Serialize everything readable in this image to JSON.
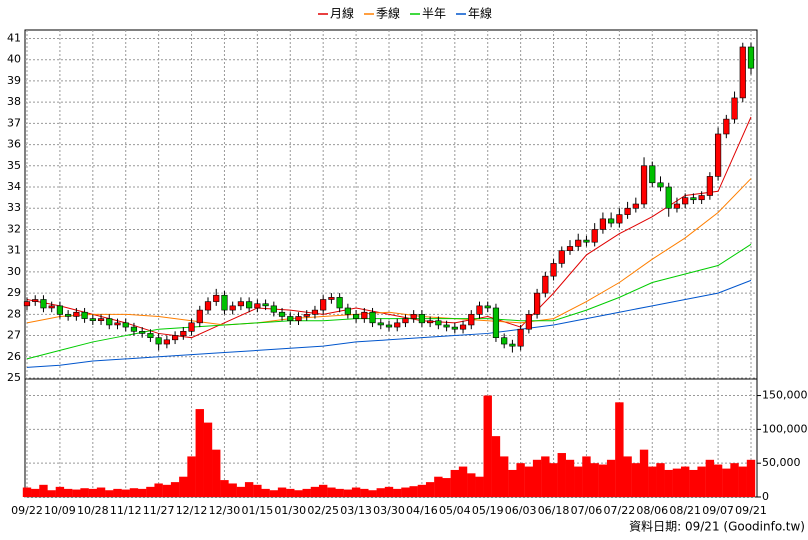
{
  "chart_data": {
    "type": "candlestick",
    "source": "資料日期: 09/21 (Goodinfo.tw)",
    "up_color": "#ff0000",
    "down_color": "#00c000",
    "grid": true,
    "categories": [
      "09/22",
      null,
      null,
      null,
      "10/09",
      null,
      null,
      null,
      "10/28",
      null,
      null,
      null,
      "11/12",
      null,
      null,
      null,
      "11/27",
      null,
      null,
      null,
      "12/12",
      null,
      null,
      null,
      "12/30",
      null,
      null,
      null,
      "01/15",
      null,
      null,
      null,
      "01/30",
      null,
      null,
      null,
      "02/25",
      null,
      null,
      null,
      "03/13",
      null,
      null,
      null,
      "03/30",
      null,
      null,
      null,
      "04/16",
      null,
      null,
      null,
      "05/04",
      null,
      null,
      null,
      "05/19",
      null,
      null,
      null,
      "06/03",
      null,
      null,
      null,
      "06/18",
      null,
      null,
      null,
      "07/06",
      null,
      null,
      null,
      "07/22",
      null,
      null,
      null,
      "08/06",
      null,
      null,
      null,
      "08/21",
      null,
      null,
      null,
      "09/07",
      null,
      null,
      null,
      "09/21"
    ],
    "ylim": [
      25,
      41.4
    ],
    "yticks": [
      25,
      26,
      27,
      28,
      29,
      30,
      31,
      32,
      33,
      34,
      35,
      36,
      37,
      38,
      39,
      40,
      41
    ],
    "open": [
      28.4,
      28.6,
      28.7,
      28.3,
      28.4,
      28.0,
      27.9,
      28.1,
      27.8,
      27.7,
      27.8,
      27.5,
      27.6,
      27.4,
      27.2,
      27.1,
      26.9,
      26.6,
      26.8,
      27.0,
      27.2,
      27.6,
      28.2,
      28.6,
      28.9,
      28.2,
      28.4,
      28.6,
      28.3,
      28.5,
      28.4,
      28.1,
      27.9,
      27.7,
      27.9,
      28.0,
      28.2,
      28.7,
      28.8,
      28.3,
      28.0,
      27.8,
      28.1,
      27.6,
      27.5,
      27.4,
      27.6,
      27.8,
      28.0,
      27.6,
      27.7,
      27.5,
      27.4,
      27.3,
      27.5,
      28.0,
      28.4,
      28.3,
      26.9,
      26.6,
      26.5,
      27.3,
      28.0,
      29.0,
      29.8,
      30.4,
      31.0,
      31.2,
      31.5,
      31.4,
      32.0,
      32.5,
      32.3,
      32.7,
      33.0,
      33.2,
      35.0,
      34.2,
      34.0,
      33.0,
      33.2,
      33.5,
      33.4,
      33.6,
      34.5,
      36.5,
      37.2,
      38.2,
      40.6
    ],
    "high": [
      28.8,
      28.9,
      28.9,
      28.6,
      28.6,
      28.2,
      28.3,
      28.3,
      28.0,
      28.0,
      28.0,
      27.8,
      27.8,
      27.6,
      27.4,
      27.3,
      27.1,
      27.0,
      27.2,
      27.4,
      27.8,
      28.4,
      28.8,
      29.2,
      29.1,
      28.6,
      28.8,
      28.8,
      28.7,
      28.7,
      28.6,
      28.3,
      28.1,
      28.1,
      28.2,
      28.4,
      28.9,
      29.0,
      29.0,
      28.5,
      28.2,
      28.3,
      28.3,
      27.8,
      27.7,
      27.8,
      28.0,
      28.2,
      28.2,
      27.9,
      27.9,
      27.7,
      27.6,
      27.7,
      28.2,
      28.6,
      28.6,
      28.5,
      27.1,
      26.8,
      27.5,
      28.2,
      29.2,
      30.0,
      30.6,
      31.2,
      31.5,
      31.8,
      31.7,
      32.3,
      32.8,
      32.8,
      33.0,
      33.3,
      33.5,
      35.4,
      35.2,
      34.5,
      34.2,
      33.5,
      33.7,
      33.7,
      33.8,
      34.7,
      36.8,
      37.4,
      38.5,
      40.8,
      40.8
    ],
    "low": [
      28.2,
      28.4,
      28.1,
      28.1,
      27.8,
      27.7,
      27.7,
      27.6,
      27.5,
      27.5,
      27.3,
      27.3,
      27.2,
      27.0,
      26.9,
      26.7,
      26.3,
      26.4,
      26.6,
      26.8,
      27.0,
      27.4,
      28.0,
      28.4,
      28.0,
      28.0,
      28.2,
      28.1,
      28.1,
      28.2,
      27.9,
      27.7,
      27.5,
      27.5,
      27.7,
      27.8,
      28.0,
      28.5,
      28.1,
      27.8,
      27.6,
      27.6,
      27.4,
      27.3,
      27.2,
      27.2,
      27.4,
      27.6,
      27.4,
      27.4,
      27.3,
      27.2,
      27.1,
      27.1,
      27.3,
      27.8,
      28.1,
      26.7,
      26.4,
      26.2,
      26.3,
      27.1,
      27.8,
      28.8,
      29.6,
      30.2,
      30.8,
      31.0,
      31.2,
      31.2,
      31.8,
      32.1,
      32.1,
      32.5,
      32.8,
      33.0,
      34.0,
      33.8,
      32.6,
      32.8,
      33.0,
      33.2,
      33.2,
      33.4,
      34.3,
      36.3,
      37.0,
      38.0,
      39.3
    ],
    "close": [
      28.6,
      28.7,
      28.3,
      28.4,
      28.0,
      27.9,
      28.1,
      27.8,
      27.7,
      27.8,
      27.5,
      27.6,
      27.4,
      27.2,
      27.1,
      26.9,
      26.6,
      26.8,
      27.0,
      27.2,
      27.6,
      28.2,
      28.6,
      28.9,
      28.2,
      28.4,
      28.6,
      28.3,
      28.5,
      28.4,
      28.1,
      27.9,
      27.7,
      27.9,
      28.0,
      28.2,
      28.7,
      28.8,
      28.3,
      28.0,
      27.8,
      28.1,
      27.6,
      27.5,
      27.4,
      27.6,
      27.8,
      28.0,
      27.6,
      27.7,
      27.5,
      27.4,
      27.3,
      27.5,
      28.0,
      28.4,
      28.3,
      26.9,
      26.6,
      26.5,
      27.3,
      28.0,
      29.0,
      29.8,
      30.4,
      31.0,
      31.2,
      31.5,
      31.4,
      32.0,
      32.5,
      32.3,
      32.7,
      33.0,
      33.2,
      35.0,
      34.2,
      34.0,
      33.0,
      33.2,
      33.5,
      33.4,
      33.6,
      34.5,
      36.5,
      37.2,
      38.2,
      40.6,
      39.6
    ],
    "series": [
      {
        "name": "月線",
        "color": "#e00000",
        "x": [
          0,
          4,
          8,
          12,
          16,
          20,
          24,
          28,
          32,
          36,
          40,
          44,
          48,
          52,
          56,
          60,
          64,
          68,
          72,
          76,
          80,
          84,
          88
        ],
        "values": [
          28.7,
          28.4,
          28.0,
          27.6,
          27.1,
          26.9,
          27.6,
          28.3,
          28.2,
          28.0,
          28.3,
          28.0,
          27.7,
          27.6,
          27.9,
          27.4,
          29.0,
          30.8,
          31.8,
          32.6,
          33.6,
          33.8,
          37.3
        ]
      },
      {
        "name": "季線",
        "color": "#ff7f00",
        "x": [
          0,
          4,
          8,
          12,
          16,
          20,
          24,
          28,
          32,
          36,
          40,
          44,
          48,
          52,
          56,
          60,
          64,
          68,
          72,
          76,
          80,
          84,
          88
        ],
        "values": [
          27.6,
          27.9,
          28.0,
          28.0,
          27.9,
          27.7,
          27.5,
          27.6,
          27.8,
          27.9,
          28.0,
          28.1,
          27.9,
          27.8,
          27.7,
          27.6,
          27.8,
          28.6,
          29.5,
          30.6,
          31.6,
          32.8,
          34.4
        ]
      },
      {
        "name": "半年",
        "color": "#00cc00",
        "x": [
          0,
          4,
          8,
          12,
          16,
          20,
          24,
          28,
          32,
          36,
          40,
          44,
          48,
          52,
          56,
          60,
          64,
          68,
          72,
          76,
          80,
          84,
          88
        ],
        "values": [
          25.9,
          26.3,
          26.7,
          27.0,
          27.3,
          27.4,
          27.5,
          27.6,
          27.7,
          27.7,
          27.8,
          27.8,
          27.8,
          27.8,
          27.8,
          27.7,
          27.7,
          28.2,
          28.8,
          29.5,
          29.9,
          30.3,
          31.3
        ]
      },
      {
        "name": "年線",
        "color": "#0055cc",
        "x": [
          0,
          4,
          8,
          12,
          16,
          20,
          24,
          28,
          32,
          36,
          40,
          44,
          48,
          52,
          56,
          60,
          64,
          68,
          72,
          76,
          80,
          84,
          88
        ],
        "values": [
          25.5,
          25.6,
          25.8,
          25.9,
          26.0,
          26.1,
          26.2,
          26.3,
          26.4,
          26.5,
          26.7,
          26.8,
          26.9,
          27.0,
          27.1,
          27.3,
          27.5,
          27.8,
          28.1,
          28.4,
          28.7,
          29.0,
          29.6
        ]
      }
    ],
    "volume": {
      "color": "#ff0000",
      "ylim": [
        0,
        173000
      ],
      "yticks": [
        0,
        {
          "value": 50000,
          "label": "50,000"
        },
        {
          "value": 100000,
          "label": "100,000"
        },
        {
          "value": 150000,
          "label": "150,000"
        }
      ],
      "values": [
        14000,
        12000,
        18000,
        10000,
        15000,
        12000,
        11000,
        13000,
        12000,
        14000,
        10000,
        12000,
        11000,
        13000,
        12000,
        15000,
        20000,
        18000,
        22000,
        30000,
        60000,
        130000,
        110000,
        70000,
        25000,
        20000,
        15000,
        22000,
        18000,
        12000,
        10000,
        14000,
        12000,
        10000,
        12000,
        15000,
        18000,
        14000,
        12000,
        11000,
        14000,
        12000,
        10000,
        13000,
        15000,
        12000,
        14000,
        16000,
        18000,
        22000,
        30000,
        28000,
        40000,
        45000,
        35000,
        30000,
        150000,
        90000,
        60000,
        40000,
        50000,
        45000,
        55000,
        60000,
        50000,
        65000,
        55000,
        45000,
        60000,
        50000,
        48000,
        55000,
        140000,
        60000,
        50000,
        70000,
        45000,
        50000,
        40000,
        42000,
        45000,
        40000,
        45000,
        55000,
        48000,
        42000,
        50000,
        45000,
        55000
      ]
    }
  }
}
